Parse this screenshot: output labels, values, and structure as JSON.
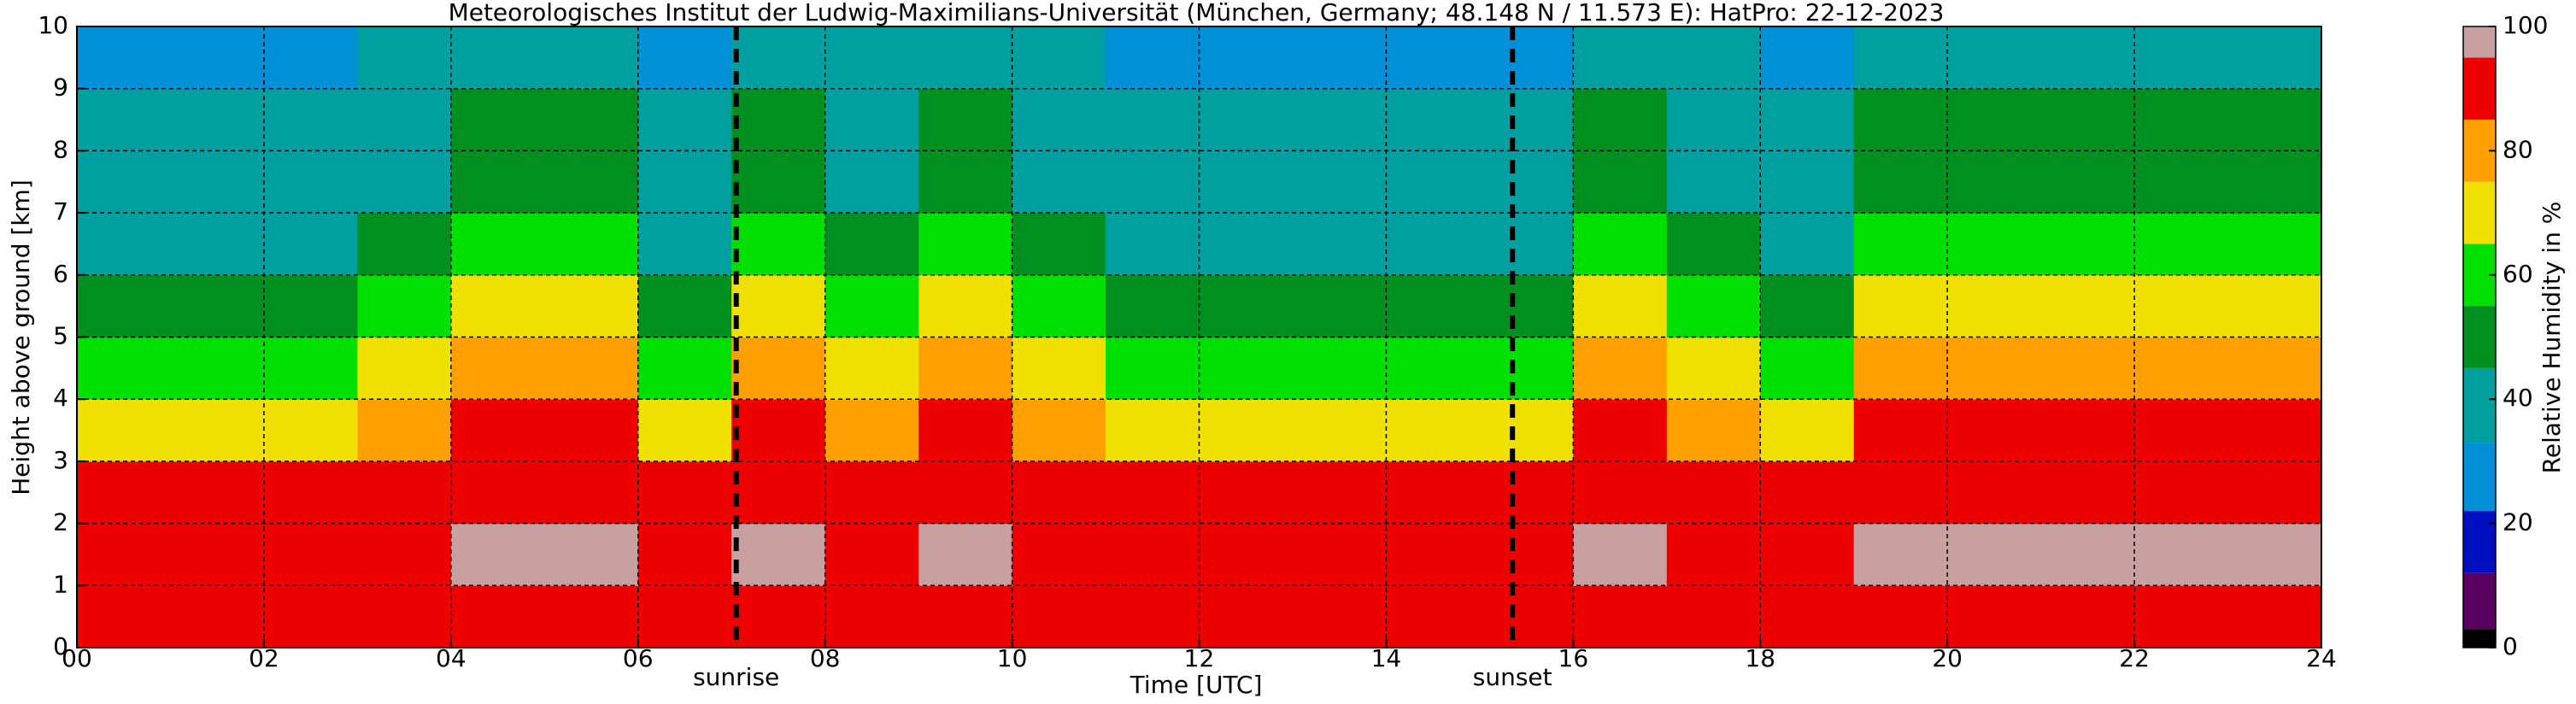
{
  "chart_data": {
    "type": "heatmap",
    "title": "Meteorologisches Institut der Ludwig-Maximilians-Universität (München, Germany; 48.148 N / 11.573 E):    HatPro: 22-12-2023",
    "xlabel": "Time [UTC]",
    "ylabel": "Height above ground [km]",
    "x_edges": [
      0,
      1,
      2,
      3,
      4,
      5,
      6,
      7,
      8,
      9,
      10,
      11,
      12,
      13,
      14,
      15,
      16,
      17,
      18,
      19,
      20,
      21,
      22,
      23,
      24
    ],
    "y_edges": [
      0,
      1,
      2,
      3,
      4,
      5,
      6,
      7,
      8,
      9,
      10
    ],
    "z": [
      [
        85,
        85,
        85,
        87,
        90,
        90,
        85,
        90,
        87,
        90,
        87,
        85,
        85,
        85,
        85,
        85,
        90,
        87,
        85,
        90,
        90,
        90,
        90,
        90
      ],
      [
        92,
        92,
        92,
        94,
        97,
        97,
        92,
        97,
        94,
        97,
        94,
        92,
        92,
        92,
        92,
        92,
        97,
        94,
        92,
        97,
        97,
        97,
        97,
        97
      ],
      [
        85,
        85,
        85,
        88,
        92,
        92,
        85,
        92,
        88,
        92,
        88,
        85,
        85,
        85,
        85,
        85,
        92,
        88,
        85,
        92,
        92,
        92,
        92,
        92
      ],
      [
        72,
        72,
        72,
        80,
        88,
        88,
        72,
        88,
        80,
        88,
        80,
        72,
        72,
        72,
        72,
        72,
        88,
        80,
        72,
        88,
        88,
        88,
        88,
        88
      ],
      [
        60,
        60,
        60,
        68,
        75,
        75,
        60,
        75,
        68,
        75,
        68,
        60,
        60,
        60,
        60,
        60,
        75,
        68,
        60,
        75,
        75,
        75,
        75,
        75
      ],
      [
        48,
        48,
        48,
        57,
        65,
        65,
        48,
        65,
        57,
        65,
        57,
        48,
        48,
        48,
        48,
        48,
        65,
        57,
        48,
        65,
        65,
        65,
        65,
        65
      ],
      [
        38,
        38,
        38,
        48,
        58,
        58,
        38,
        58,
        48,
        58,
        48,
        38,
        38,
        38,
        38,
        38,
        58,
        48,
        38,
        58,
        58,
        58,
        58,
        58
      ],
      [
        36,
        36,
        36,
        44,
        52,
        52,
        36,
        52,
        44,
        52,
        44,
        36,
        36,
        36,
        36,
        36,
        52,
        44,
        36,
        52,
        52,
        52,
        52,
        52
      ],
      [
        34,
        34,
        34,
        40,
        48,
        48,
        34,
        48,
        40,
        48,
        40,
        34,
        34,
        34,
        34,
        34,
        48,
        40,
        34,
        48,
        48,
        48,
        48,
        48
      ],
      [
        30,
        30,
        30,
        34,
        38,
        38,
        30,
        38,
        34,
        38,
        34,
        30,
        30,
        30,
        30,
        30,
        38,
        34,
        30,
        38,
        38,
        38,
        38,
        38
      ]
    ],
    "xlim": [
      0,
      24
    ],
    "xticks": [
      {
        "value": 0,
        "label": "00"
      },
      {
        "value": 2,
        "label": "02"
      },
      {
        "value": 4,
        "label": "04"
      },
      {
        "value": 6,
        "label": "06"
      },
      {
        "value": 8,
        "label": "08"
      },
      10,
      12,
      14,
      16,
      18,
      20,
      22,
      24
    ],
    "ylim": [
      0,
      10
    ],
    "yticks": [
      0,
      1,
      2,
      3,
      4,
      5,
      6,
      7,
      8,
      9,
      10
    ],
    "grid": true,
    "events": [
      {
        "x": 7.05,
        "label": "sunrise"
      },
      {
        "x": 15.35,
        "label": "sunset"
      }
    ],
    "colorbar": {
      "label": "Relative Humidity in %",
      "lim": [
        0,
        100
      ],
      "ticks": [
        0,
        20,
        40,
        60,
        80,
        100
      ],
      "levels": [
        0,
        3,
        12,
        22,
        33,
        45,
        55,
        65,
        75,
        85,
        95,
        100
      ],
      "colors": [
        "#000000",
        "#5a0060",
        "#0010c0",
        "#0090d8",
        "#00a0a0",
        "#009020",
        "#00e000",
        "#f0e000",
        "#ffa000",
        "#ee0000",
        "#c8a0a0"
      ]
    }
  }
}
